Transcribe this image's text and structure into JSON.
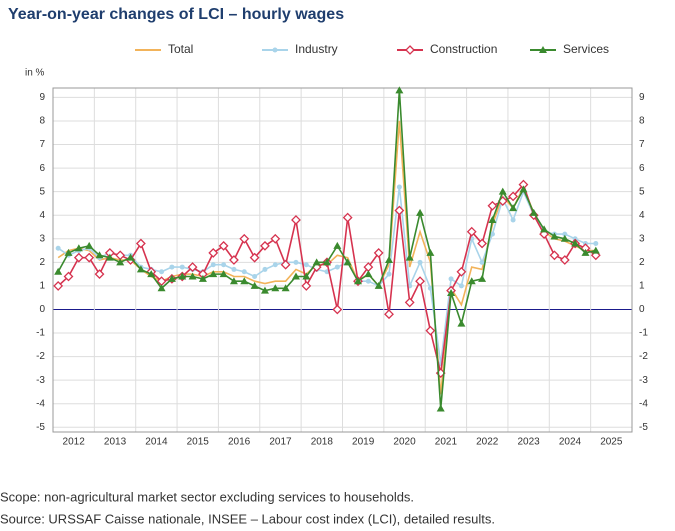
{
  "chart_data": {
    "type": "line",
    "title": "Year-on-year changes of LCI – hourly wages",
    "y_unit": "in %",
    "x": [
      2012.125,
      2012.375,
      2012.625,
      2012.875,
      2013.125,
      2013.375,
      2013.625,
      2013.875,
      2014.125,
      2014.375,
      2014.625,
      2014.875,
      2015.125,
      2015.375,
      2015.625,
      2015.875,
      2016.125,
      2016.375,
      2016.625,
      2016.875,
      2017.125,
      2017.375,
      2017.625,
      2017.875,
      2018.125,
      2018.375,
      2018.625,
      2018.875,
      2019.125,
      2019.375,
      2019.625,
      2019.875,
      2020.125,
      2020.375,
      2020.625,
      2020.875,
      2021.125,
      2021.375,
      2021.625,
      2021.875,
      2022.125,
      2022.375,
      2022.625,
      2022.875,
      2023.125,
      2023.375,
      2023.625,
      2023.875,
      2024.125,
      2024.375,
      2024.625,
      2024.875,
      2025.125
    ],
    "xlim": [
      2012,
      2026
    ],
    "xticks": [
      2012,
      2013,
      2014,
      2015,
      2016,
      2017,
      2018,
      2019,
      2020,
      2021,
      2022,
      2023,
      2024,
      2025
    ],
    "ylim": [
      -5.2,
      9.4
    ],
    "yticks": [
      -5,
      -4,
      -3,
      -2,
      -1,
      0,
      1,
      2,
      3,
      4,
      5,
      6,
      7,
      8,
      9
    ],
    "grid": true,
    "series": [
      {
        "name": "Total",
        "color": "#f2b35a",
        "marker": "none",
        "values": [
          2.2,
          2.5,
          2.6,
          2.5,
          2.1,
          2.2,
          2.1,
          2.1,
          1.7,
          1.4,
          1.2,
          1.4,
          1.5,
          1.5,
          1.4,
          1.6,
          1.6,
          1.4,
          1.4,
          1.2,
          1.1,
          1.2,
          1.2,
          1.7,
          1.5,
          1.9,
          1.9,
          2.3,
          2.2,
          1.2,
          1.5,
          1.0,
          1.9,
          8.0,
          1.8,
          3.3,
          2.0,
          -3.6,
          0.9,
          0.2,
          1.8,
          1.7,
          3.6,
          4.8,
          4.3,
          5.2,
          4.1,
          3.3,
          3.0,
          2.9,
          2.7,
          2.5,
          2.5
        ]
      },
      {
        "name": "Industry",
        "color": "#a9d4ea",
        "marker": "circle",
        "values": [
          2.6,
          2.3,
          2.5,
          2.6,
          2.2,
          2.4,
          2.3,
          2.3,
          1.8,
          1.7,
          1.6,
          1.8,
          1.8,
          1.7,
          1.6,
          1.9,
          1.9,
          1.7,
          1.6,
          1.4,
          1.7,
          1.9,
          2.0,
          2.0,
          1.9,
          1.7,
          1.6,
          1.8,
          2.0,
          1.2,
          1.2,
          1.0,
          1.5,
          5.2,
          1.0,
          2.0,
          0.9,
          -2.3,
          1.3,
          1.0,
          3.0,
          2.0,
          3.2,
          4.7,
          3.8,
          5.0,
          4.0,
          3.3,
          3.2,
          3.2,
          3.0,
          2.8,
          2.8
        ]
      },
      {
        "name": "Construction",
        "color": "#d6334f",
        "marker": "diamond",
        "values": [
          1.0,
          1.4,
          2.2,
          2.2,
          1.5,
          2.4,
          2.3,
          2.1,
          2.8,
          1.6,
          1.2,
          1.3,
          1.4,
          1.8,
          1.5,
          2.4,
          2.7,
          2.1,
          3.0,
          2.2,
          2.7,
          3.0,
          1.9,
          3.8,
          1.0,
          1.8,
          2.0,
          0.0,
          3.9,
          1.2,
          1.8,
          2.4,
          -0.2,
          4.2,
          0.3,
          1.2,
          -0.9,
          -2.7,
          0.8,
          1.6,
          3.3,
          2.8,
          4.4,
          4.6,
          4.8,
          5.3,
          4.0,
          3.2,
          2.3,
          2.1,
          2.8,
          2.6,
          2.3
        ]
      },
      {
        "name": "Services",
        "color": "#3a8a2e",
        "marker": "triangle",
        "values": [
          1.6,
          2.4,
          2.6,
          2.7,
          2.3,
          2.2,
          2.0,
          2.2,
          1.7,
          1.5,
          0.9,
          1.3,
          1.4,
          1.4,
          1.3,
          1.5,
          1.5,
          1.2,
          1.2,
          1.0,
          0.8,
          0.9,
          0.9,
          1.4,
          1.4,
          2.0,
          2.0,
          2.7,
          2.0,
          1.2,
          1.5,
          1.0,
          2.1,
          9.3,
          2.2,
          4.1,
          2.4,
          -4.2,
          0.7,
          -0.6,
          1.2,
          1.3,
          3.8,
          5.0,
          4.3,
          5.1,
          4.1,
          3.4,
          3.1,
          3.0,
          2.8,
          2.4,
          2.5
        ]
      }
    ]
  },
  "footnotes": [
    "Scope: non-agricultural market sector excluding services to households.",
    "Source: URSSAF Caisse nationale, INSEE – Labour cost index (LCI), detailed results."
  ]
}
